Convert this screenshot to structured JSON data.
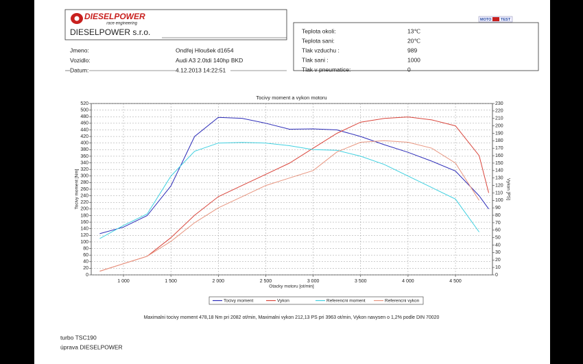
{
  "header": {
    "logo_title": "DIESELPOWER",
    "logo_subtitle": "race engineering",
    "company": "DIESELPOWER s.r.o.",
    "fields": [
      {
        "label": "Jmeno:",
        "value": "Ondřej Hloušek d1654"
      },
      {
        "label": "Vozidlo:",
        "value": "Audi A3 2.0tdi 140hp BKD"
      },
      {
        "label": "Datum:",
        "value": "4.12.2013 14:22:51"
      }
    ],
    "badge": [
      "MOTO",
      "TEST"
    ]
  },
  "conditions": [
    {
      "label": "Teplota okoli:",
      "value": "13℃"
    },
    {
      "label": "Teplota sani:",
      "value": "20℃"
    },
    {
      "label": "Tlak vzduchu :",
      "value": "989"
    },
    {
      "label": "Tlak sani :",
      "value": "1000"
    },
    {
      "label": "Tlak v pneumatice:",
      "value": "0"
    }
  ],
  "chart_data": {
    "type": "line",
    "title": "Tocivy moment a vykon motoru",
    "x_label": "Otacky motoru [ot/min]",
    "y_label": "Tocivy moment [Nm]",
    "y2_label": "Vykon [PS]",
    "x": [
      750,
      1000,
      1250,
      1500,
      1750,
      2000,
      2250,
      2500,
      2750,
      3000,
      3250,
      3500,
      3750,
      4000,
      4250,
      4500,
      4750,
      4850
    ],
    "series": [
      {
        "name": "Tocivy moment",
        "color": "#2b2bb8",
        "axis": "y",
        "values": [
          125,
          145,
          180,
          270,
          420,
          478,
          475,
          460,
          442,
          443,
          440,
          420,
          395,
          372,
          345,
          315,
          240,
          200
        ]
      },
      {
        "name": "Vykon",
        "color": "#d9453b",
        "axis": "y2",
        "values": [
          5,
          15,
          25,
          50,
          80,
          105,
          120,
          135,
          150,
          170,
          190,
          205,
          210,
          212,
          208,
          200,
          160,
          110
        ]
      },
      {
        "name": "Referencni moment",
        "color": "#3fd0e0",
        "axis": "y",
        "values": [
          110,
          150,
          185,
          300,
          375,
          400,
          402,
          400,
          392,
          380,
          378,
          360,
          335,
          300,
          265,
          230,
          130,
          null
        ]
      },
      {
        "name": "Referencni vykon",
        "color": "#e8957f",
        "axis": "y2",
        "values": [
          5,
          15,
          25,
          45,
          70,
          90,
          105,
          120,
          130,
          140,
          165,
          178,
          180,
          178,
          170,
          150,
          100,
          null
        ]
      }
    ],
    "xlim": [
      660,
      4890
    ],
    "ylim": [
      0,
      520
    ],
    "y2lim": [
      0,
      230
    ],
    "xticks": [
      {
        "value": 1000,
        "label": "1 000"
      },
      {
        "value": 1500,
        "label": "1 500"
      },
      {
        "value": 2000,
        "label": "2 000"
      },
      {
        "value": 2500,
        "label": "2 500"
      },
      {
        "value": 3000,
        "label": "3 000"
      },
      {
        "value": 3500,
        "label": "3 500"
      },
      {
        "value": 4000,
        "label": "4 000"
      },
      {
        "value": 4500,
        "label": "4 500"
      }
    ],
    "yticks": [
      0,
      20,
      40,
      60,
      80,
      100,
      120,
      140,
      160,
      180,
      200,
      220,
      240,
      260,
      280,
      300,
      320,
      340,
      360,
      380,
      400,
      420,
      440,
      460,
      480,
      500,
      520
    ],
    "y2ticks": [
      0,
      10,
      20,
      30,
      40,
      50,
      60,
      70,
      80,
      90,
      100,
      110,
      120,
      130,
      140,
      150,
      160,
      170,
      180,
      190,
      200,
      210,
      220,
      230
    ],
    "grid": true,
    "legend": "bottom",
    "footnote": "Maximalni tocivy moment 478,18 Nm pri 2082 ot/min,  Maximalni vykon 212,13 PS pri 3963 ot/min,  Vykon navysen o 1,2% podle DIN 70020"
  },
  "notes": [
    "turbo TSC190",
    "úprava DIESELPOWER"
  ]
}
